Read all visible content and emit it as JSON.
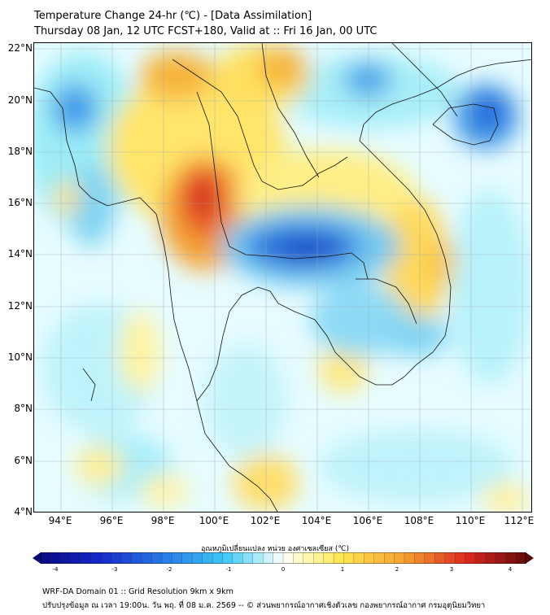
{
  "title": {
    "line1": "Temperature Change 24-hr (℃) - [Data Assimilation]",
    "line2": "Thursday 08 Jan, 12 UTC FCST+180, Valid at :: Fri 16 Jan, 00 UTC"
  },
  "map": {
    "lat_labels": [
      "22°N",
      "20°N",
      "18°N",
      "16°N",
      "14°N",
      "12°N",
      "10°N",
      "8°N",
      "6°N",
      "4°N"
    ],
    "lon_labels": [
      "94°E",
      "96°E",
      "98°E",
      "100°E",
      "102°E",
      "104°E",
      "106°E",
      "108°E",
      "110°E",
      "112°E"
    ],
    "lat_range": [
      4,
      22
    ],
    "lon_range": [
      93,
      112.5
    ]
  },
  "colorbar": {
    "title": "อุณหภูมิเปลี่ยนแปลง หน่วย องศาเซลเซียส (℃)",
    "ticks": [
      "-4",
      "-3",
      "-2",
      "-1",
      "0",
      "1",
      "2",
      "3",
      "4"
    ],
    "min": -4,
    "max": 4
  },
  "footer": {
    "line1": "WRF-DA Domain 01 :: Grid Resolution 9km x 9km",
    "line2": "ปรับปรุงข้อมูล ณ เวลา 19:00น. วัน พฤ. ที่ 08 ม.ค. 2569 -- © ส่วนพยากรณ์อากาศเชิงตัวเลข กองพยากรณ์อากาศ กรมอุตุนิยมวิทยา"
  }
}
